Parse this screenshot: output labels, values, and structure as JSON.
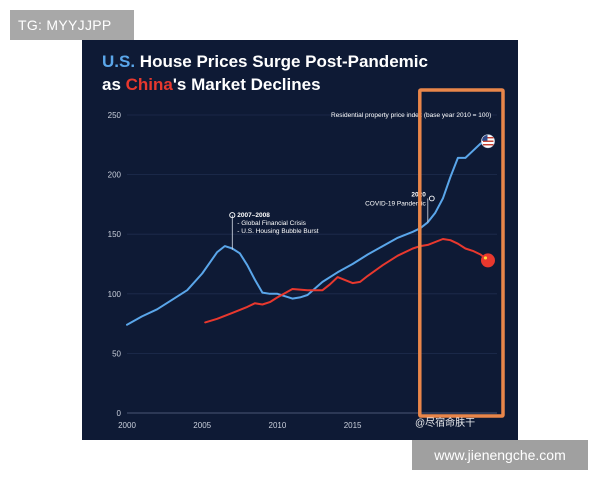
{
  "top_tag": "TG: MYYJJPP",
  "bottom_watermark": "www.jienengche.com",
  "logo_watermark": "@尽宿命肤干",
  "colors": {
    "background": "#0e1a35",
    "us": "#5aa6ea",
    "china": "#e8382e",
    "highlight": "#e9864a"
  },
  "chart_data": {
    "type": "line",
    "title_parts": {
      "us": "U.S.",
      "line1_rest": " House Prices Surge Post-Pandemic",
      "line2_prefix": "as ",
      "china": "China",
      "line2_rest": "'s Market Declines"
    },
    "subtitle": "Residential property price index (base year 2010 = 100)",
    "xlim": [
      2000,
      2024.6
    ],
    "ylim": [
      0,
      250
    ],
    "x_ticks": [
      2000,
      2005,
      2010,
      2015
    ],
    "y_ticks": [
      0,
      50,
      100,
      150,
      200,
      250
    ],
    "series": [
      {
        "name": "U.S.",
        "color": "#5aa6ea",
        "x": [
          2000,
          2001,
          2002,
          2003,
          2004,
          2005,
          2005.5,
          2006,
          2006.5,
          2007,
          2007.5,
          2008,
          2008.5,
          2009,
          2009.5,
          2010,
          2010.5,
          2011,
          2011.5,
          2012,
          2013,
          2014,
          2015,
          2016,
          2017,
          2018,
          2019,
          2019.5,
          2020,
          2020.5,
          2021,
          2021.5,
          2022,
          2022.5,
          2023,
          2023.5,
          2024
        ],
        "values": [
          74,
          81,
          87,
          95,
          103,
          117,
          126,
          135,
          140,
          138,
          134,
          124,
          112,
          101,
          100,
          100,
          98,
          96,
          97,
          99,
          110,
          118,
          125,
          133,
          140,
          147,
          152,
          155,
          160,
          168,
          180,
          198,
          214,
          214,
          220,
          226,
          228
        ]
      },
      {
        "name": "China",
        "color": "#e8382e",
        "x": [
          2005.2,
          2006,
          2007,
          2008,
          2008.5,
          2009,
          2009.5,
          2010,
          2011,
          2012,
          2013,
          2013.5,
          2014,
          2015,
          2015.5,
          2016,
          2017,
          2018,
          2019,
          2019.5,
          2020,
          2021,
          2021.5,
          2022,
          2022.5,
          2023,
          2023.5,
          2024
        ],
        "values": [
          76,
          79,
          84,
          89,
          92,
          91,
          93,
          97,
          104,
          103,
          103,
          108,
          114,
          109,
          110,
          115,
          124,
          132,
          138,
          140,
          141,
          146,
          145,
          142,
          138,
          136,
          133,
          128
        ]
      }
    ],
    "annotations": [
      {
        "x": 2007,
        "y": 166,
        "label": "2007–2008",
        "lines": [
          "- Global Financial Crisis",
          "- U.S. Housing Bubble Burst"
        ]
      },
      {
        "x": 2020,
        "y": 180,
        "label": "2020",
        "lines": [
          "COVID-19 Pandemic"
        ]
      }
    ],
    "highlight_range_x": [
      2019.6,
      2024.6
    ]
  }
}
